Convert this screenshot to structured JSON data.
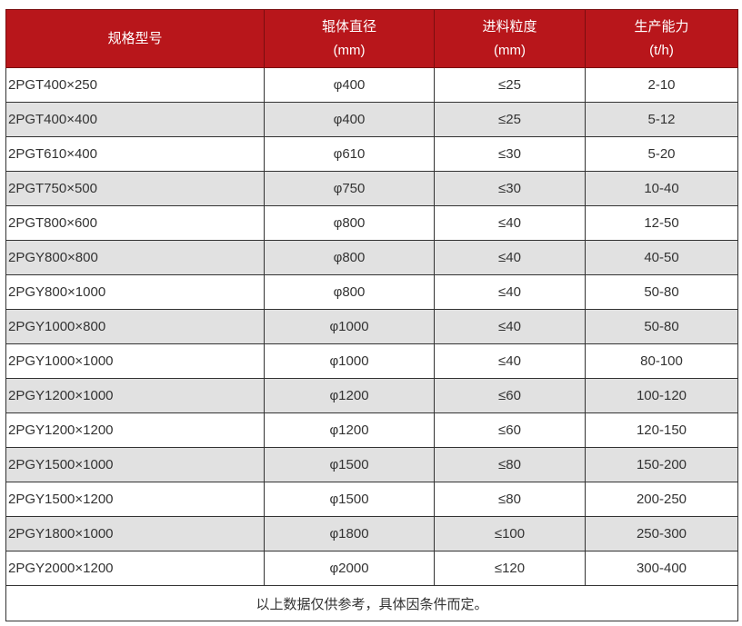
{
  "colors": {
    "header_bg": "#b8161b",
    "header_text": "#ffffff",
    "stripe": "#e1e1e1"
  },
  "headers": [
    {
      "line1": "规格型号",
      "line2": ""
    },
    {
      "line1": "辊体直径",
      "line2": "(mm)"
    },
    {
      "line1": "进料粒度",
      "line2": "(mm)"
    },
    {
      "line1": "生产能力",
      "line2": "(t/h)"
    }
  ],
  "rows": [
    [
      "2PGT400×250",
      "φ400",
      "≤25",
      "2-10"
    ],
    [
      "2PGT400×400",
      "φ400",
      "≤25",
      "5-12"
    ],
    [
      "2PGT610×400",
      "φ610",
      "≤30",
      "5-20"
    ],
    [
      "2PGT750×500",
      "φ750",
      "≤30",
      "10-40"
    ],
    [
      "2PGT800×600",
      "φ800",
      "≤40",
      "12-50"
    ],
    [
      "2PGY800×800",
      "φ800",
      "≤40",
      "40-50"
    ],
    [
      "2PGY800×1000",
      "φ800",
      "≤40",
      "50-80"
    ],
    [
      "2PGY1000×800",
      "φ1000",
      "≤40",
      "50-80"
    ],
    [
      "2PGY1000×1000",
      "φ1000",
      "≤40",
      "80-100"
    ],
    [
      "2PGY1200×1000",
      "φ1200",
      "≤60",
      "100-120"
    ],
    [
      "2PGY1200×1200",
      "φ1200",
      "≤60",
      "120-150"
    ],
    [
      "2PGY1500×1000",
      "φ1500",
      "≤80",
      "150-200"
    ],
    [
      "2PGY1500×1200",
      "φ1500",
      "≤80",
      "200-250"
    ],
    [
      "2PGY1800×1000",
      "φ1800",
      "≤100",
      "250-300"
    ],
    [
      "2PGY2000×1200",
      "φ2000",
      "≤120",
      "300-400"
    ]
  ],
  "footer_note": "以上数据仅供参考，具体因条件而定。"
}
